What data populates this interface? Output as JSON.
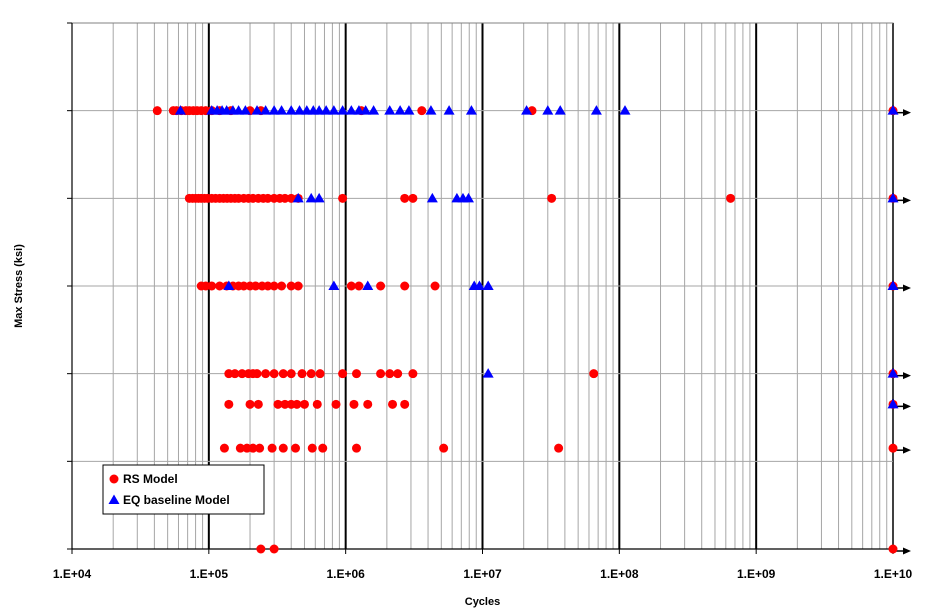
{
  "chart_data": {
    "type": "scatter",
    "title": "",
    "xlabel": "Cycles",
    "ylabel": "Max Stress (ksi)",
    "x_scale": "log",
    "xlim": [
      10000,
      10000000000
    ],
    "x_ticks": [
      "1.E+04",
      "1.E+05",
      "1.E+06",
      "1.E+07",
      "1.E+08",
      "1.E+09",
      "1.E+10"
    ],
    "y_level_count": 6,
    "grid": true,
    "legend_position": "bottom-left",
    "series": [
      {
        "name": "RS Model",
        "marker": "circle",
        "color": "#ff0000",
        "points": [
          {
            "x": 42000,
            "level": 1
          },
          {
            "x": 55000,
            "level": 1
          },
          {
            "x": 58000,
            "level": 1
          },
          {
            "x": 63000,
            "level": 1
          },
          {
            "x": 68000,
            "level": 1
          },
          {
            "x": 72000,
            "level": 1
          },
          {
            "x": 77000,
            "level": 1
          },
          {
            "x": 82000,
            "level": 1
          },
          {
            "x": 88000,
            "level": 1
          },
          {
            "x": 95000,
            "level": 1
          },
          {
            "x": 105000,
            "level": 1
          },
          {
            "x": 120000,
            "level": 1
          },
          {
            "x": 145000,
            "level": 1
          },
          {
            "x": 200000,
            "level": 1
          },
          {
            "x": 240000,
            "level": 1
          },
          {
            "x": 1300000,
            "level": 1
          },
          {
            "x": 3600000,
            "level": 1
          },
          {
            "x": 23000000,
            "level": 1
          },
          {
            "x": 10000000000,
            "level": 1
          },
          {
            "x": 72000,
            "level": 2
          },
          {
            "x": 76000,
            "level": 2
          },
          {
            "x": 80000,
            "level": 2
          },
          {
            "x": 84000,
            "level": 2
          },
          {
            "x": 88000,
            "level": 2
          },
          {
            "x": 93000,
            "level": 2
          },
          {
            "x": 98000,
            "level": 2
          },
          {
            "x": 105000,
            "level": 2
          },
          {
            "x": 112000,
            "level": 2
          },
          {
            "x": 120000,
            "level": 2
          },
          {
            "x": 128000,
            "level": 2
          },
          {
            "x": 136000,
            "level": 2
          },
          {
            "x": 145000,
            "level": 2
          },
          {
            "x": 155000,
            "level": 2
          },
          {
            "x": 165000,
            "level": 2
          },
          {
            "x": 180000,
            "level": 2
          },
          {
            "x": 195000,
            "level": 2
          },
          {
            "x": 210000,
            "level": 2
          },
          {
            "x": 230000,
            "level": 2
          },
          {
            "x": 250000,
            "level": 2
          },
          {
            "x": 270000,
            "level": 2
          },
          {
            "x": 300000,
            "level": 2
          },
          {
            "x": 330000,
            "level": 2
          },
          {
            "x": 360000,
            "level": 2
          },
          {
            "x": 400000,
            "level": 2
          },
          {
            "x": 450000,
            "level": 2
          },
          {
            "x": 950000,
            "level": 2
          },
          {
            "x": 2700000,
            "level": 2
          },
          {
            "x": 3100000,
            "level": 2
          },
          {
            "x": 32000000,
            "level": 2
          },
          {
            "x": 650000000,
            "level": 2
          },
          {
            "x": 10000000000,
            "level": 2
          },
          {
            "x": 88000,
            "level": 3
          },
          {
            "x": 95000,
            "level": 3
          },
          {
            "x": 105000,
            "level": 3
          },
          {
            "x": 120000,
            "level": 3
          },
          {
            "x": 135000,
            "level": 3
          },
          {
            "x": 150000,
            "level": 3
          },
          {
            "x": 165000,
            "level": 3
          },
          {
            "x": 180000,
            "level": 3
          },
          {
            "x": 200000,
            "level": 3
          },
          {
            "x": 220000,
            "level": 3
          },
          {
            "x": 245000,
            "level": 3
          },
          {
            "x": 270000,
            "level": 3
          },
          {
            "x": 300000,
            "level": 3
          },
          {
            "x": 340000,
            "level": 3
          },
          {
            "x": 400000,
            "level": 3
          },
          {
            "x": 450000,
            "level": 3
          },
          {
            "x": 1100000,
            "level": 3
          },
          {
            "x": 1250000,
            "level": 3
          },
          {
            "x": 1800000,
            "level": 3
          },
          {
            "x": 2700000,
            "level": 3
          },
          {
            "x": 4500000,
            "level": 3
          },
          {
            "x": 10000000000,
            "level": 3
          },
          {
            "x": 140000,
            "level": 4
          },
          {
            "x": 155000,
            "level": 4
          },
          {
            "x": 175000,
            "level": 4
          },
          {
            "x": 195000,
            "level": 4
          },
          {
            "x": 210000,
            "level": 4
          },
          {
            "x": 225000,
            "level": 4
          },
          {
            "x": 260000,
            "level": 4
          },
          {
            "x": 300000,
            "level": 4
          },
          {
            "x": 350000,
            "level": 4
          },
          {
            "x": 400000,
            "level": 4
          },
          {
            "x": 480000,
            "level": 4
          },
          {
            "x": 560000,
            "level": 4
          },
          {
            "x": 650000,
            "level": 4
          },
          {
            "x": 950000,
            "level": 4
          },
          {
            "x": 1200000,
            "level": 4
          },
          {
            "x": 1800000,
            "level": 4
          },
          {
            "x": 2100000,
            "level": 4
          },
          {
            "x": 2400000,
            "level": 4
          },
          {
            "x": 3100000,
            "level": 4
          },
          {
            "x": 65000000,
            "level": 4
          },
          {
            "x": 10000000000,
            "level": 4
          },
          {
            "x": 140000,
            "level": 4.35
          },
          {
            "x": 200000,
            "level": 4.35
          },
          {
            "x": 230000,
            "level": 4.35
          },
          {
            "x": 320000,
            "level": 4.35
          },
          {
            "x": 360000,
            "level": 4.35
          },
          {
            "x": 400000,
            "level": 4.35
          },
          {
            "x": 440000,
            "level": 4.35
          },
          {
            "x": 500000,
            "level": 4.35
          },
          {
            "x": 620000,
            "level": 4.35
          },
          {
            "x": 850000,
            "level": 4.35
          },
          {
            "x": 1150000,
            "level": 4.35
          },
          {
            "x": 1450000,
            "level": 4.35
          },
          {
            "x": 2200000,
            "level": 4.35
          },
          {
            "x": 2700000,
            "level": 4.35
          },
          {
            "x": 10000000000,
            "level": 4.35
          },
          {
            "x": 130000,
            "level": 4.85
          },
          {
            "x": 170000,
            "level": 4.85
          },
          {
            "x": 190000,
            "level": 4.85
          },
          {
            "x": 210000,
            "level": 4.85
          },
          {
            "x": 235000,
            "level": 4.85
          },
          {
            "x": 290000,
            "level": 4.85
          },
          {
            "x": 350000,
            "level": 4.85
          },
          {
            "x": 430000,
            "level": 4.85
          },
          {
            "x": 570000,
            "level": 4.85
          },
          {
            "x": 680000,
            "level": 4.85
          },
          {
            "x": 1200000,
            "level": 4.85
          },
          {
            "x": 5200000,
            "level": 4.85
          },
          {
            "x": 36000000,
            "level": 4.85
          },
          {
            "x": 10000000000,
            "level": 4.85
          },
          {
            "x": 240000,
            "level": 6
          },
          {
            "x": 300000,
            "level": 6
          },
          {
            "x": 10000000000,
            "level": 6
          }
        ]
      },
      {
        "name": "EQ baseline Model",
        "marker": "triangle",
        "color": "#0000ff",
        "points": [
          {
            "x": 62000,
            "level": 1
          },
          {
            "x": 105000,
            "level": 1
          },
          {
            "x": 115000,
            "level": 1
          },
          {
            "x": 125000,
            "level": 1
          },
          {
            "x": 135000,
            "level": 1
          },
          {
            "x": 150000,
            "level": 1
          },
          {
            "x": 165000,
            "level": 1
          },
          {
            "x": 185000,
            "level": 1
          },
          {
            "x": 225000,
            "level": 1
          },
          {
            "x": 260000,
            "level": 1
          },
          {
            "x": 300000,
            "level": 1
          },
          {
            "x": 340000,
            "level": 1
          },
          {
            "x": 400000,
            "level": 1
          },
          {
            "x": 460000,
            "level": 1
          },
          {
            "x": 520000,
            "level": 1
          },
          {
            "x": 580000,
            "level": 1
          },
          {
            "x": 640000,
            "level": 1
          },
          {
            "x": 720000,
            "level": 1
          },
          {
            "x": 820000,
            "level": 1
          },
          {
            "x": 950000,
            "level": 1
          },
          {
            "x": 1100000,
            "level": 1
          },
          {
            "x": 1250000,
            "level": 1
          },
          {
            "x": 1400000,
            "level": 1
          },
          {
            "x": 1600000,
            "level": 1
          },
          {
            "x": 2100000,
            "level": 1
          },
          {
            "x": 2500000,
            "level": 1
          },
          {
            "x": 2900000,
            "level": 1
          },
          {
            "x": 4200000,
            "level": 1
          },
          {
            "x": 5700000,
            "level": 1
          },
          {
            "x": 8300000,
            "level": 1
          },
          {
            "x": 21000000,
            "level": 1
          },
          {
            "x": 30000000,
            "level": 1
          },
          {
            "x": 37000000,
            "level": 1
          },
          {
            "x": 68000000,
            "level": 1
          },
          {
            "x": 110000000,
            "level": 1
          },
          {
            "x": 10000000000,
            "level": 1
          },
          {
            "x": 450000,
            "level": 2
          },
          {
            "x": 560000,
            "level": 2
          },
          {
            "x": 640000,
            "level": 2
          },
          {
            "x": 4300000,
            "level": 2
          },
          {
            "x": 6500000,
            "level": 2
          },
          {
            "x": 7200000,
            "level": 2
          },
          {
            "x": 7900000,
            "level": 2
          },
          {
            "x": 10000000000,
            "level": 2
          },
          {
            "x": 140000,
            "level": 3
          },
          {
            "x": 820000,
            "level": 3
          },
          {
            "x": 1450000,
            "level": 3
          },
          {
            "x": 8700000,
            "level": 3
          },
          {
            "x": 9500000,
            "level": 3
          },
          {
            "x": 11000000,
            "level": 3
          },
          {
            "x": 10000000000,
            "level": 3
          },
          {
            "x": 11000000,
            "level": 4
          },
          {
            "x": 10000000000,
            "level": 4
          },
          {
            "x": 10000000000,
            "level": 4.35
          }
        ]
      }
    ],
    "runout_x": 10000000000,
    "runout_levels": [
      1,
      2,
      3,
      4,
      4.35,
      4.85,
      6
    ]
  }
}
